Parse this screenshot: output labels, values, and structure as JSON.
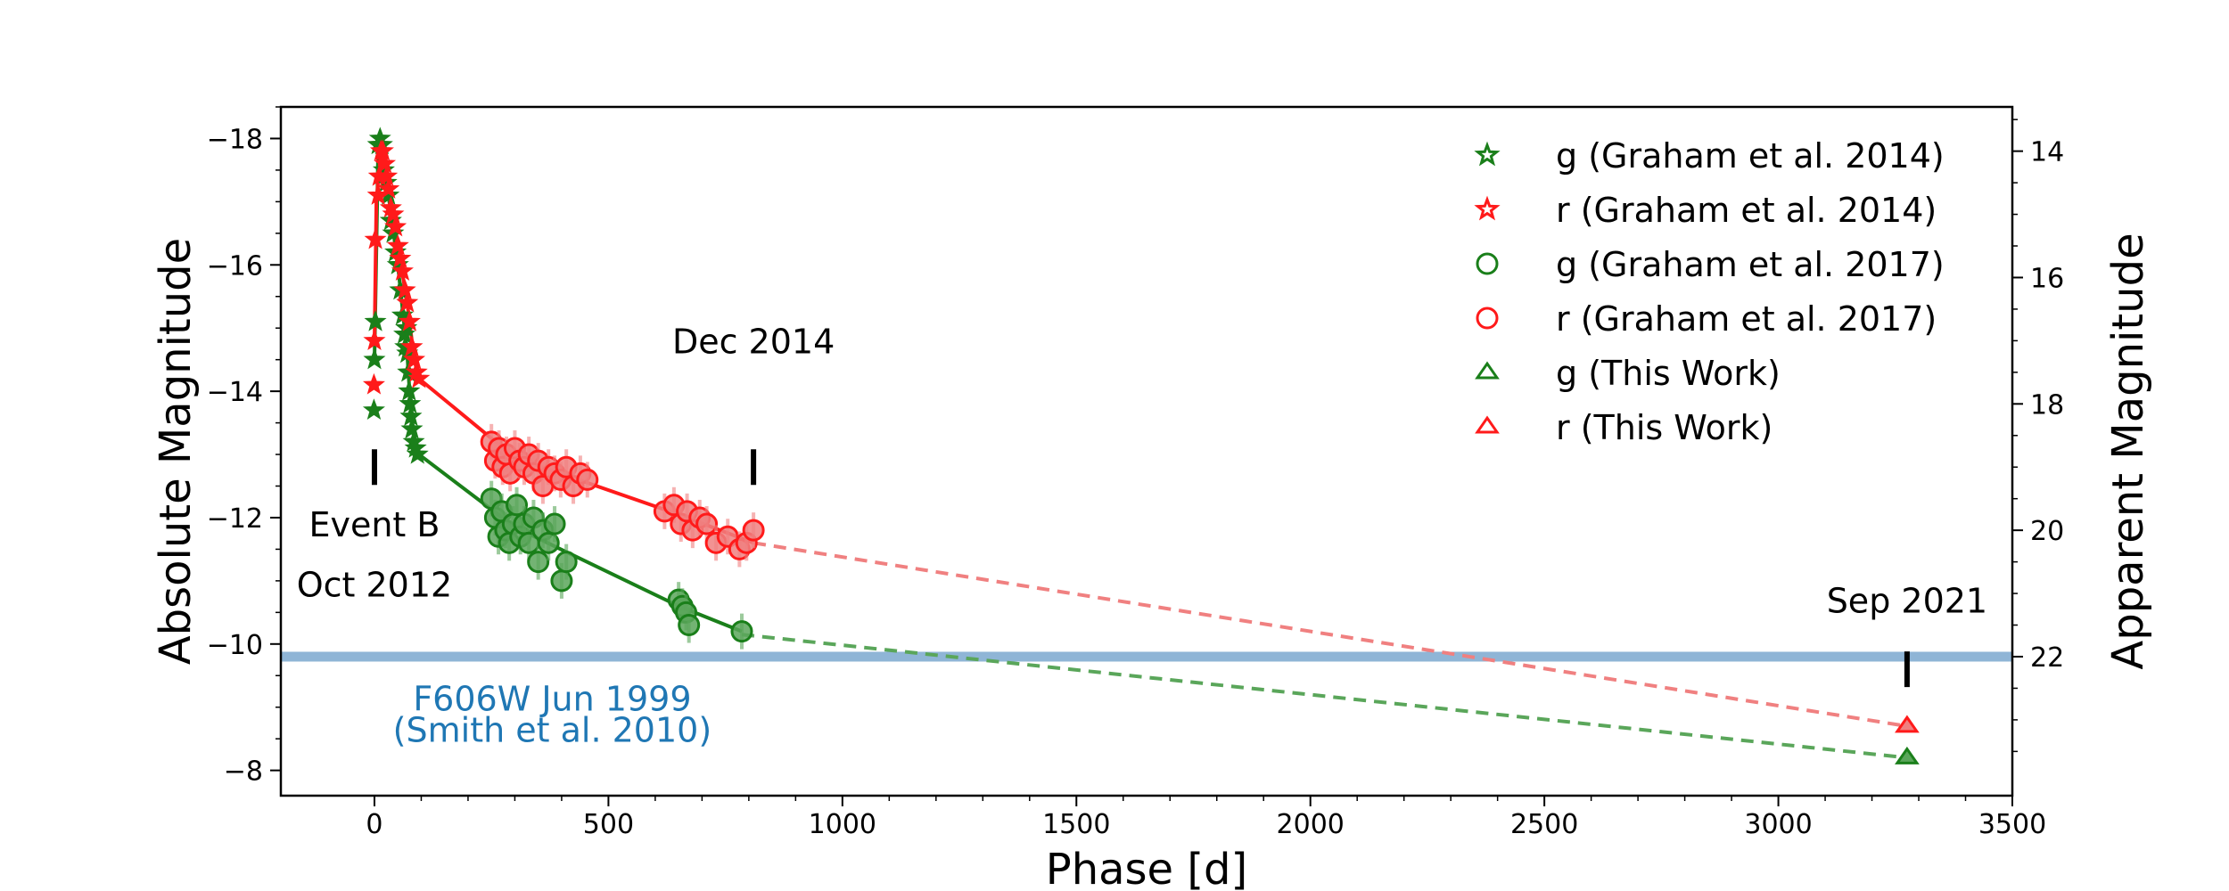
{
  "chart_data": {
    "type": "scatter",
    "xlabel": "Phase [d]",
    "ylabel": "Absolute Magnitude",
    "y2label": "Apparent Magnitude",
    "xlim": [
      -200,
      3500
    ],
    "ylim": [
      -7.6,
      -18.5
    ],
    "xticks": [
      0,
      500,
      1000,
      1500,
      2000,
      2500,
      3000,
      3500
    ],
    "yticks": [
      -18,
      -16,
      -14,
      -12,
      -10,
      -8
    ],
    "yticklabels": [
      "−18",
      "−16",
      "−14",
      "−12",
      "−10",
      "−8"
    ],
    "y2_offset": 31.8,
    "y2ticks": [
      14,
      16,
      18,
      20,
      22
    ],
    "legend_position": "top-right",
    "colors": {
      "g": "#1a7f1a",
      "r": "#ff1a1a",
      "g_light": "#5aa65a",
      "r_light": "#f08080",
      "band": "#8fb5d6",
      "band_text": "#1f77b4"
    },
    "series": [
      {
        "name": "g (Graham et al. 2014)",
        "band": "g",
        "marker": "star",
        "x": [
          -1,
          0,
          2,
          8,
          12,
          16,
          20,
          25,
          30,
          35,
          40,
          45,
          50,
          55,
          60,
          64,
          66,
          68,
          70,
          72,
          74,
          76,
          78,
          80,
          84,
          88,
          92
        ],
        "y": [
          -13.7,
          -14.5,
          -15.1,
          -17.9,
          -18.0,
          -17.9,
          -17.5,
          -17.3,
          -17.1,
          -16.7,
          -16.5,
          -16.2,
          -16.0,
          -15.6,
          -15.2,
          -14.9,
          -14.7,
          -15.0,
          -14.6,
          -14.3,
          -14.0,
          -13.8,
          -13.6,
          -13.4,
          -13.2,
          -13.1,
          -13.0
        ]
      },
      {
        "name": "r (Graham et al. 2014)",
        "band": "r",
        "marker": "star",
        "x": [
          -1,
          0,
          2,
          8,
          10,
          14,
          18,
          22,
          26,
          30,
          35,
          40,
          45,
          50,
          55,
          60,
          65,
          70,
          75,
          80,
          85,
          90,
          95
        ],
        "y": [
          -14.1,
          -14.8,
          -16.4,
          -17.1,
          -17.4,
          -17.8,
          -17.8,
          -17.6,
          -17.4,
          -17.2,
          -16.9,
          -16.8,
          -16.6,
          -16.3,
          -16.1,
          -15.9,
          -15.6,
          -15.4,
          -15.1,
          -14.7,
          -14.5,
          -14.3,
          -14.2
        ]
      },
      {
        "name": "g (Graham et al. 2017)",
        "band": "g",
        "marker": "circle",
        "x": [
          250,
          258,
          265,
          272,
          280,
          288,
          296,
          304,
          312,
          320,
          330,
          340,
          350,
          360,
          372,
          385,
          400,
          410,
          650,
          658,
          666,
          672,
          785
        ],
        "y": [
          -12.3,
          -12.0,
          -11.7,
          -12.1,
          -11.8,
          -11.6,
          -11.9,
          -12.2,
          -11.7,
          -11.9,
          -11.6,
          -12.0,
          -11.3,
          -11.8,
          -11.6,
          -11.9,
          -11.0,
          -11.3,
          -10.7,
          -10.6,
          -10.5,
          -10.3,
          -10.2
        ]
      },
      {
        "name": "r (Graham et al. 2017)",
        "band": "r",
        "marker": "circle",
        "x": [
          250,
          258,
          266,
          274,
          282,
          290,
          300,
          310,
          320,
          330,
          340,
          350,
          360,
          372,
          385,
          398,
          410,
          425,
          440,
          455,
          620,
          640,
          655,
          668,
          680,
          695,
          710,
          730,
          755,
          780,
          795,
          810
        ],
        "y": [
          -13.2,
          -12.9,
          -13.1,
          -12.8,
          -13.0,
          -12.7,
          -13.1,
          -12.9,
          -12.8,
          -13.0,
          -12.7,
          -12.9,
          -12.5,
          -12.8,
          -12.7,
          -12.6,
          -12.8,
          -12.5,
          -12.7,
          -12.6,
          -12.1,
          -12.2,
          -11.9,
          -12.1,
          -11.8,
          -12.0,
          -11.9,
          -11.6,
          -11.7,
          -11.5,
          -11.6,
          -11.8
        ]
      },
      {
        "name": "g (This Work)",
        "band": "g",
        "marker": "triangle",
        "x": [
          3275
        ],
        "y": [
          -8.2
        ]
      },
      {
        "name": "r (This Work)",
        "band": "r",
        "marker": "triangle",
        "x": [
          3275
        ],
        "y": [
          -8.7
        ]
      }
    ],
    "fit_lines": [
      {
        "band": "g",
        "style": "solid",
        "x": [
          0,
          8,
          12,
          30,
          50,
          70,
          80,
          95,
          300,
          650,
          785
        ],
        "y": [
          -14.5,
          -17.9,
          -18.0,
          -17.1,
          -16.0,
          -14.6,
          -13.4,
          -13.0,
          -11.85,
          -10.6,
          -10.2
        ]
      },
      {
        "band": "r",
        "style": "solid",
        "x": [
          0,
          4,
          14,
          30,
          50,
          70,
          85,
          95,
          300,
          650,
          810
        ],
        "y": [
          -14.8,
          -17.0,
          -17.8,
          -17.2,
          -16.3,
          -15.4,
          -14.5,
          -14.2,
          -12.95,
          -12.05,
          -11.6
        ]
      },
      {
        "band": "g",
        "style": "dashed",
        "x": [
          785,
          3275
        ],
        "y": [
          -10.15,
          -8.2
        ]
      },
      {
        "band": "r",
        "style": "dashed",
        "x": [
          810,
          3275
        ],
        "y": [
          -11.6,
          -8.7
        ]
      }
    ],
    "hband": {
      "y": -9.8,
      "label_line1": "F606W Jun 1999",
      "label_line2": "(Smith et al. 2010)",
      "label_x": 380,
      "label_y1": -8.95,
      "label_y2": -8.45
    },
    "events": [
      {
        "x": 0,
        "y": -12.8,
        "label_lines": [
          {
            "text": "Event B",
            "y": -11.7
          },
          {
            "text": "Oct 2012",
            "y": -10.75
          }
        ]
      },
      {
        "x": 810,
        "y": -12.8,
        "label_lines": [
          {
            "text": "Dec 2014",
            "y": -14.6
          }
        ]
      },
      {
        "x": 3275,
        "y": -9.6,
        "label_lines": [
          {
            "text": "Sep 2021",
            "y": -10.5
          }
        ]
      }
    ]
  }
}
